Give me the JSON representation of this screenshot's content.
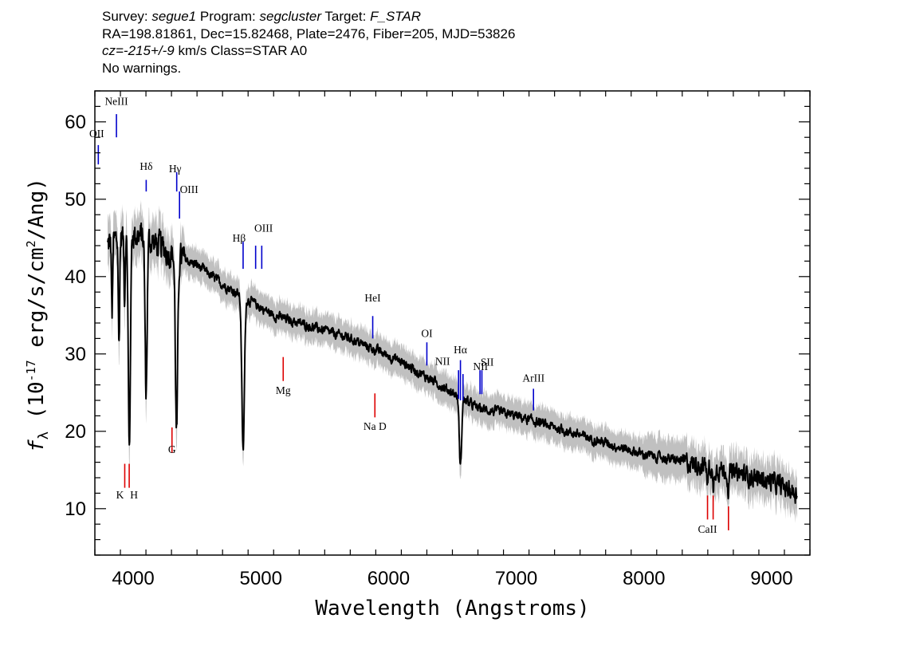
{
  "header": {
    "line1": {
      "survey_label": "Survey: ",
      "survey": "segue1",
      "program_label": " Program: ",
      "program": "segcluster",
      "target_label": " Target: ",
      "target": "F_STAR"
    },
    "line2": "RA=198.81861, Dec=15.82468, Plate=2476, Fiber=205, MJD=53826",
    "line3": {
      "cz": "cz=-215+/-9",
      "rest": " km/s Class=STAR A0"
    },
    "line4": "No warnings."
  },
  "colors": {
    "flux": "#000000",
    "error_band": "#c0c0c0",
    "emission_marker": "#0000cc",
    "absorption_marker": "#dd0000"
  },
  "chart_data": {
    "type": "line",
    "xlabel": "Wavelength (Angstroms)",
    "ylabel": "f_λ (10^-17 erg/s/cm^2/Ang)",
    "ylabel_parts": {
      "f": "f",
      "sub": "λ",
      "pre": " (10",
      "exp1": "-17",
      "mid": " erg/s/cm",
      "exp2": "2",
      "post": "/Ang)"
    },
    "xlim": [
      3700,
      9300
    ],
    "ylim": [
      4,
      64
    ],
    "xticks": [
      4000,
      5000,
      6000,
      7000,
      8000,
      9000
    ],
    "yticks": [
      10,
      20,
      30,
      40,
      50,
      60
    ],
    "continuum": [
      [
        3800,
        44
      ],
      [
        3900,
        45
      ],
      [
        4000,
        45.5
      ],
      [
        4100,
        45
      ],
      [
        4200,
        44
      ],
      [
        4300,
        43
      ],
      [
        4500,
        41.5
      ],
      [
        4700,
        39
      ],
      [
        4900,
        37
      ],
      [
        5100,
        35
      ],
      [
        5300,
        34
      ],
      [
        5500,
        33
      ],
      [
        5700,
        32
      ],
      [
        5900,
        30.5
      ],
      [
        6100,
        29
      ],
      [
        6300,
        27
      ],
      [
        6500,
        25
      ],
      [
        6700,
        23
      ],
      [
        7000,
        22
      ],
      [
        7500,
        19.5
      ],
      [
        8000,
        17
      ],
      [
        8500,
        15.5
      ],
      [
        9000,
        13.5
      ],
      [
        9200,
        12
      ]
    ],
    "absorption_features": [
      {
        "x": 3835,
        "depth": 10,
        "width": 4
      },
      {
        "x": 3889,
        "depth": 14,
        "width": 5
      },
      {
        "x": 3933,
        "depth": 8,
        "width": 4
      },
      {
        "x": 3970,
        "depth": 28,
        "width": 8
      },
      {
        "x": 4101,
        "depth": 20,
        "width": 8
      },
      {
        "x": 4340,
        "depth": 23,
        "width": 9
      },
      {
        "x": 4861,
        "depth": 20,
        "width": 10
      },
      {
        "x": 6563,
        "depth": 9,
        "width": 9
      },
      {
        "x": 8498,
        "depth": 2.5,
        "width": 5
      },
      {
        "x": 8542,
        "depth": 3,
        "width": 6
      },
      {
        "x": 8662,
        "depth": 2.5,
        "width": 6
      }
    ],
    "emission_lines": [
      {
        "label": "OII",
        "x": 3727,
        "ytop": 57,
        "ybot": 54.5,
        "label_y": 58,
        "dx": -2
      },
      {
        "label": "NeIII",
        "x": 3869,
        "ytop": 61,
        "ybot": 58,
        "label_y": 62.2,
        "dx": 0
      },
      {
        "label": "Hδ",
        "x": 4102,
        "ytop": 52.5,
        "ybot": 51,
        "label_y": 53.8,
        "dx": 0
      },
      {
        "label": "Hγ",
        "x": 4341,
        "ytop": 53.5,
        "ybot": 51,
        "label_y": 53.5,
        "dx": -2
      },
      {
        "label": "OIII",
        "x": 4363,
        "ytop": 51,
        "ybot": 47.5,
        "label_y": 50.8,
        "dx": 12
      },
      {
        "label": "Hβ",
        "x": 4861,
        "ytop": 44.5,
        "ybot": 41,
        "label_y": 44.5,
        "dx": -5
      },
      {
        "label": "OIII",
        "x": 4959,
        "ytop": 44,
        "ybot": 41,
        "label_y": 45.8,
        "dx": 10
      },
      {
        "label": "",
        "x": 5007,
        "ytop": 44,
        "ybot": 41,
        "label_y": 0,
        "dx": 0
      },
      {
        "label": "HeI",
        "x": 5876,
        "ytop": 34.9,
        "ybot": 32,
        "label_y": 36.8,
        "dx": 0
      },
      {
        "label": "OI",
        "x": 6300,
        "ytop": 31.5,
        "ybot": 28.5,
        "label_y": 32.2,
        "dx": 0
      },
      {
        "label": "NII",
        "x": 6548,
        "ytop": 27.9,
        "ybot": 24.2,
        "label_y": 28.6,
        "dx": -20
      },
      {
        "label": "Hα",
        "x": 6563,
        "ytop": 29.2,
        "ybot": 24,
        "label_y": 30.1,
        "dx": 0
      },
      {
        "label": "NII",
        "x": 6583,
        "ytop": 27.4,
        "ybot": 24,
        "label_y": 27.9,
        "dx": 22
      },
      {
        "label": "SII",
        "x": 6716,
        "ytop": 27.9,
        "ybot": 24.8,
        "label_y": 28.5,
        "dx": 9
      },
      {
        "label": "",
        "x": 6731,
        "ytop": 27.9,
        "ybot": 24.8,
        "label_y": 0,
        "dx": 0
      },
      {
        "label": "ArIII",
        "x": 7135,
        "ytop": 25.5,
        "ybot": 22.7,
        "label_y": 26.4,
        "dx": 0
      }
    ],
    "absorption_lines": [
      {
        "label": "K",
        "x": 3934,
        "ytop": 15.8,
        "ybot": 12.7,
        "label_y": 11.3,
        "dx": -6
      },
      {
        "label": "H",
        "x": 3969,
        "ytop": 15.8,
        "ybot": 12.7,
        "label_y": 11.3,
        "dx": 6
      },
      {
        "label": "G",
        "x": 4304,
        "ytop": 20.5,
        "ybot": 17.2,
        "label_y": 17.2,
        "dx": 0
      },
      {
        "label": "Mg",
        "x": 5175,
        "ytop": 29.6,
        "ybot": 26.5,
        "label_y": 24.8,
        "dx": 0
      },
      {
        "label": "Na D",
        "x": 5893,
        "ytop": 24.9,
        "ybot": 21.8,
        "label_y": 20.2,
        "dx": 0
      },
      {
        "label": "CaII",
        "x": 8498,
        "ytop": 11.7,
        "ybot": 8.6,
        "label_y": 6.9,
        "dx": 0
      },
      {
        "label": "",
        "x": 8542,
        "ytop": 11.7,
        "ybot": 8.6,
        "label_y": 0,
        "dx": 0
      },
      {
        "label": "",
        "x": 8662,
        "ytop": 10.3,
        "ybot": 7.2,
        "label_y": 0,
        "dx": 0
      }
    ]
  }
}
